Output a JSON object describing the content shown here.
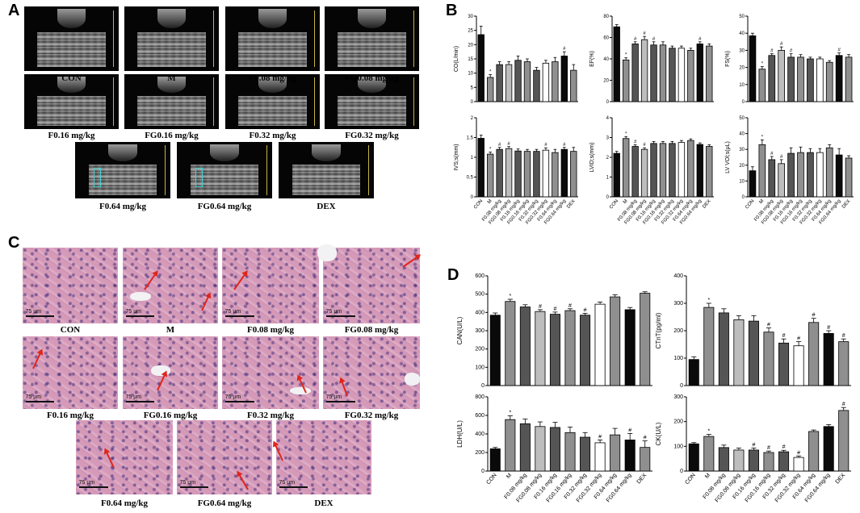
{
  "panel_letters": {
    "a": "A",
    "b": "B",
    "c": "C",
    "d": "D"
  },
  "echo_captions": [
    "CON",
    "M",
    "F0.08 mg/kg",
    "FG0.08 mg/kg",
    "F0.16 mg/kg",
    "FG0.16 mg/kg",
    "F0.32 mg/kg",
    "FG0.32 mg/kg",
    "F0.64 mg/kg",
    "FG0.64 mg/kg",
    "DEX"
  ],
  "histo_captions": [
    "CON",
    "M",
    "F0.08 mg/kg",
    "FG0.08 mg/kg",
    "F0.16 mg/kg",
    "FG0.16 mg/kg",
    "F0.32 mg/kg",
    "FG0.32 mg/kg",
    "F0.64 mg/kg",
    "FG0.64 mg/kg",
    "DEX"
  ],
  "scale_label": "75 μm",
  "colors": {
    "black": "#0a0a0a",
    "dark_gray": "#555555",
    "mid_gray": "#8f8f8f",
    "light_gray": "#bdbdbd",
    "white": "#ffffff",
    "arrow_red": "#e0251b"
  },
  "chart_data": [
    {
      "id": "CO",
      "type": "bar",
      "ylabel": "CO(L/min)",
      "ylim": [
        0,
        30
      ],
      "yticks": [
        0,
        5,
        10,
        15,
        20,
        25,
        30
      ],
      "categories": [
        "CON",
        "M",
        "F0.08 mg/kg",
        "FG0.08 mg/kg",
        "F0.16 mg/kg",
        "FG0.16 mg/kg",
        "F0.32 mg/kg",
        "FG0.32 mg/kg",
        "F0.64 mg/kg",
        "FG0.64 mg/kg",
        "DEX"
      ],
      "values": [
        23.5,
        8.5,
        13,
        13,
        14.5,
        14,
        11,
        13.5,
        14,
        16,
        11
      ],
      "errors": [
        3,
        1,
        1,
        1,
        1.5,
        1,
        1,
        1,
        1.5,
        1.5,
        2
      ],
      "marks": [
        "",
        "*",
        "",
        "",
        "",
        "",
        "",
        "",
        "",
        "#",
        ""
      ],
      "show_xlabels": false
    },
    {
      "id": "EF",
      "type": "bar",
      "ylabel": "EF(%)",
      "ylim": [
        0,
        80
      ],
      "yticks": [
        0,
        20,
        40,
        60,
        80
      ],
      "categories": [
        "CON",
        "M",
        "F0.08 mg/kg",
        "FG0.08 mg/kg",
        "F0.16 mg/kg",
        "FG0.16 mg/kg",
        "F0.32 mg/kg",
        "FG0.32 mg/kg",
        "F0.64 mg/kg",
        "FG0.64 mg/kg",
        "DEX"
      ],
      "values": [
        70,
        39,
        54,
        58,
        53,
        53,
        50,
        50,
        48,
        54,
        52
      ],
      "errors": [
        2,
        2,
        2,
        3,
        3,
        3,
        2,
        2,
        2,
        2,
        2
      ],
      "marks": [
        "",
        "*",
        "#",
        "#",
        "#",
        "",
        "",
        "",
        "",
        "#",
        ""
      ],
      "show_xlabels": false
    },
    {
      "id": "FS",
      "type": "bar",
      "ylabel": "FS(%)",
      "ylim": [
        0,
        50
      ],
      "yticks": [
        0,
        10,
        20,
        30,
        40,
        50
      ],
      "categories": [
        "CON",
        "M",
        "F0.08 mg/kg",
        "FG0.08 mg/kg",
        "F0.16 mg/kg",
        "FG0.16 mg/kg",
        "F0.32 mg/kg",
        "FG0.32 mg/kg",
        "F0.64 mg/kg",
        "FG0.64 mg/kg",
        "DEX"
      ],
      "values": [
        38.5,
        19,
        27,
        30,
        26,
        26,
        25,
        25,
        23,
        27,
        26
      ],
      "errors": [
        1.5,
        1.5,
        1,
        2,
        2,
        1.5,
        1,
        1,
        1,
        1.5,
        1.5
      ],
      "marks": [
        "",
        "*",
        "#",
        "#",
        "#",
        "",
        "",
        "",
        "",
        "#",
        ""
      ],
      "show_xlabels": false
    },
    {
      "id": "IVS",
      "type": "bar",
      "ylabel": "IVS;s(mm)",
      "ylim": [
        0,
        2.0
      ],
      "yticks": [
        0.0,
        0.5,
        1.0,
        1.5,
        2.0
      ],
      "categories": [
        "CON",
        "M",
        "F0.08 mg/kg",
        "FG0.08 mg/kg",
        "F0.16 mg/kg",
        "FG0.16 mg/kg",
        "F0.32 mg/kg",
        "FG0.32 mg/kg",
        "F0.64 mg/kg",
        "FG0.64 mg/kg",
        "DEX"
      ],
      "values": [
        1.48,
        1.08,
        1.2,
        1.22,
        1.16,
        1.15,
        1.15,
        1.18,
        1.12,
        1.2,
        1.15
      ],
      "errors": [
        0.08,
        0.05,
        0.05,
        0.05,
        0.05,
        0.05,
        0.05,
        0.06,
        0.08,
        0.05,
        0.1
      ],
      "marks": [
        "",
        "*",
        "#",
        "#",
        "",
        "",
        "",
        "#",
        "",
        "#",
        ""
      ],
      "show_xlabels": true
    },
    {
      "id": "LVID",
      "type": "bar",
      "ylabel": "LVID;s(mm)",
      "ylim": [
        0,
        4
      ],
      "yticks": [
        0,
        1,
        2,
        3,
        4
      ],
      "categories": [
        "CON",
        "M",
        "F0.08 mg/kg",
        "FG0.08 mg/kg",
        "F0.16 mg/kg",
        "FG0.16 mg/kg",
        "F0.32 mg/kg",
        "FG0.32 mg/kg",
        "F0.64 mg/kg",
        "FG0.64 mg/kg",
        "DEX"
      ],
      "values": [
        2.2,
        2.95,
        2.55,
        2.4,
        2.7,
        2.7,
        2.7,
        2.75,
        2.85,
        2.65,
        2.55
      ],
      "errors": [
        0.1,
        0.1,
        0.08,
        0.08,
        0.1,
        0.1,
        0.1,
        0.1,
        0.08,
        0.08,
        0.08
      ],
      "marks": [
        "",
        "*",
        "#",
        "#",
        "",
        "",
        "",
        "",
        "",
        "",
        ""
      ],
      "show_xlabels": true
    },
    {
      "id": "LVVOL",
      "type": "bar",
      "ylabel": "LV VOl;s(μL)",
      "ylim": [
        0,
        50
      ],
      "yticks": [
        0,
        10,
        20,
        30,
        40,
        50
      ],
      "categories": [
        "CON",
        "M",
        "F0.08 mg/kg",
        "FG0.08 mg/kg",
        "F0.16 mg/kg",
        "FG0.16 mg/kg",
        "F0.32 mg/kg",
        "FG0.32 mg/kg",
        "F0.64 mg/kg",
        "FG0.64 mg/kg",
        "DEX"
      ],
      "values": [
        16.5,
        33,
        23.5,
        21,
        27.5,
        28,
        28,
        28,
        31,
        26.5,
        24.5
      ],
      "errors": [
        2.5,
        3,
        2,
        2.5,
        3.5,
        3.5,
        2.5,
        2.5,
        2,
        4,
        1.5
      ],
      "marks": [
        "",
        "*",
        "#",
        "#",
        "",
        "",
        "",
        "",
        "",
        "",
        ""
      ],
      "show_xlabels": true
    },
    {
      "id": "CAN",
      "type": "bar",
      "ylabel": "CAN(U/L)",
      "ylim": [
        0,
        600
      ],
      "yticks": [
        0,
        100,
        200,
        300,
        400,
        500,
        600
      ],
      "categories": [
        "CON",
        "M",
        "F0.08 mg/kg",
        "FG0.08 mg/kg",
        "F0.16 mg/kg",
        "FG0.16 mg/kg",
        "F0.32 mg/kg",
        "FG0.32 mg/kg",
        "F0.64 mg/kg",
        "FG0.64 mg/kg",
        "DEX"
      ],
      "values": [
        385,
        460,
        430,
        405,
        390,
        410,
        385,
        445,
        485,
        415,
        505
      ],
      "errors": [
        12,
        12,
        12,
        10,
        12,
        10,
        10,
        12,
        12,
        12,
        8
      ],
      "marks": [
        "",
        "*",
        "",
        "#",
        "#",
        "#",
        "#",
        "",
        "",
        "",
        ""
      ],
      "show_xlabels": false
    },
    {
      "id": "CTnT",
      "type": "bar",
      "ylabel": "CTnT(pg/ml)",
      "ylim": [
        0,
        400
      ],
      "yticks": [
        0,
        100,
        200,
        300,
        400
      ],
      "categories": [
        "CON",
        "M",
        "F0.08 mg/kg",
        "FG0.08 mg/kg",
        "F0.16 mg/kg",
        "FG0.16 mg/kg",
        "F0.32 mg/kg",
        "FG0.32 mg/kg",
        "F0.64 mg/kg",
        "FG0.64 mg/kg",
        "DEX"
      ],
      "values": [
        95,
        285,
        265,
        240,
        235,
        195,
        155,
        145,
        230,
        190,
        160
      ],
      "errors": [
        10,
        15,
        15,
        15,
        20,
        15,
        15,
        15,
        15,
        10,
        10
      ],
      "marks": [
        "",
        "*",
        "",
        "",
        "",
        "#",
        "#",
        "#",
        "#",
        "#",
        "#"
      ],
      "show_xlabels": false
    },
    {
      "id": "LDH",
      "type": "bar",
      "ylabel": "LDH(U/L)",
      "ylim": [
        0,
        800
      ],
      "yticks": [
        0,
        200,
        400,
        600,
        800
      ],
      "categories": [
        "CON",
        "M",
        "F0.08 mg/kg",
        "FG0.08 mg/kg",
        "F0.16 mg/kg",
        "FG0.16 mg/kg",
        "F0.32 mg/kg",
        "FG0.32 mg/kg",
        "F0.64 mg/kg",
        "FG0.64 mg/kg",
        "DEX"
      ],
      "values": [
        240,
        555,
        510,
        480,
        470,
        415,
        365,
        305,
        390,
        335,
        255
      ],
      "errors": [
        15,
        40,
        50,
        50,
        55,
        60,
        50,
        30,
        70,
        70,
        70
      ],
      "marks": [
        "",
        "*",
        "",
        "",
        "",
        "",
        "",
        "#",
        "",
        "#",
        "#"
      ],
      "show_xlabels": true
    },
    {
      "id": "CK",
      "type": "bar",
      "ylabel": "CK(U/L)",
      "ylim": [
        0,
        300
      ],
      "yticks": [
        0,
        100,
        200,
        300
      ],
      "categories": [
        "CON",
        "M",
        "F0.08 mg/kg",
        "FG0.08 mg/kg",
        "F0.16 mg/kg",
        "FG0.16 mg/kg",
        "F0.32 mg/kg",
        "FG0.32 mg/kg",
        "F0.64 mg/kg",
        "FG0.64 mg/kg",
        "DEX"
      ],
      "values": [
        110,
        140,
        95,
        85,
        85,
        75,
        78,
        55,
        160,
        180,
        245
      ],
      "errors": [
        5,
        8,
        10,
        8,
        8,
        6,
        6,
        6,
        6,
        8,
        12
      ],
      "marks": [
        "",
        "*",
        "",
        "",
        "#",
        "#",
        "#",
        "#",
        "",
        "",
        "#"
      ],
      "show_xlabels": true
    }
  ]
}
